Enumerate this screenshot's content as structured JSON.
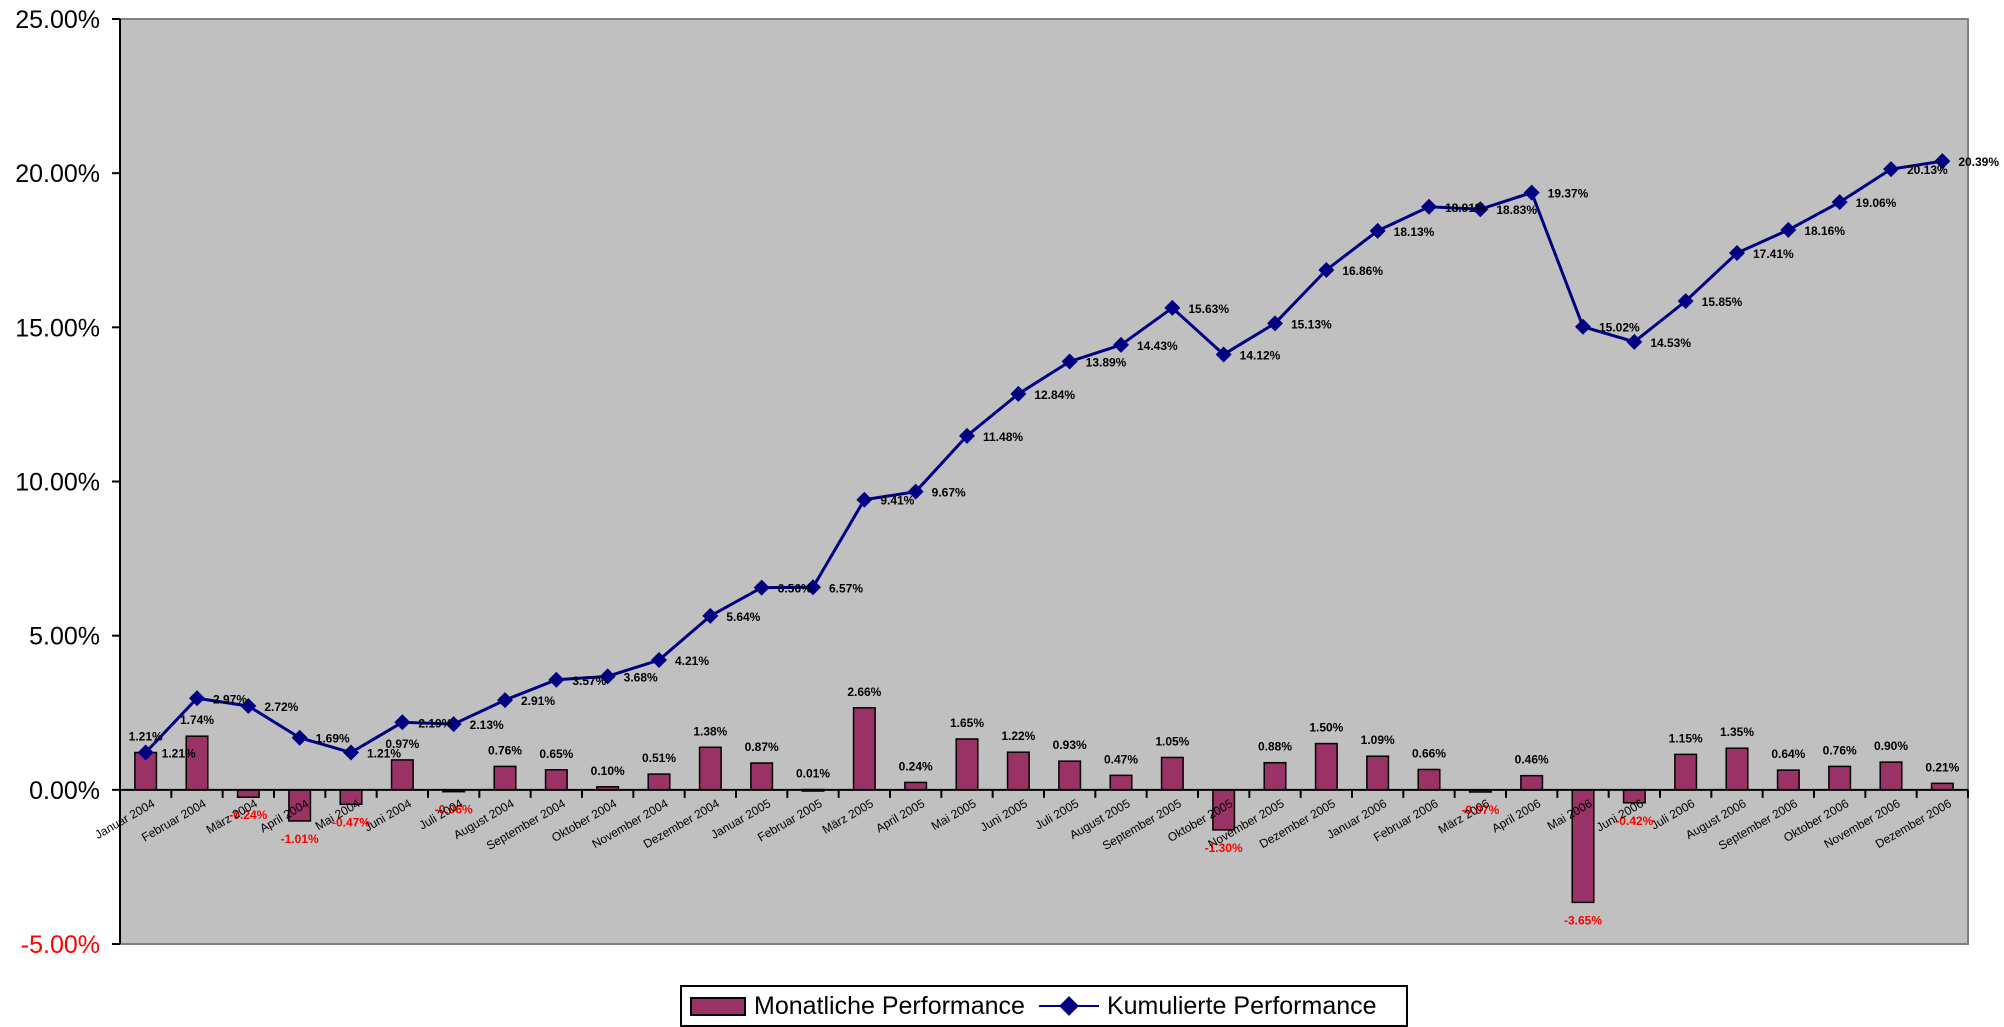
{
  "chart_data": {
    "type": "bar",
    "categories": [
      "Januar 2004",
      "Februar 2004",
      "März 2004",
      "April 2004",
      "Mai 2004",
      "Juni 2004",
      "Juli 2004",
      "August 2004",
      "September 2004",
      "Oktober 2004",
      "November 2004",
      "Dezember 2004",
      "Januar 2005",
      "Februar 2005",
      "März 2005",
      "April 2005",
      "Mai 2005",
      "Juni 2005",
      "Juli 2005",
      "August 2005",
      "September 2005",
      "Oktober 2005",
      "November 2005",
      "Dezember 2005",
      "Januar 2006",
      "Februar 2006",
      "März 2006",
      "April 2006",
      "Mai 2006",
      "Juni 2006",
      "Juli 2006",
      "August 2006",
      "September 2006",
      "Oktober 2006",
      "November 2006",
      "Dezember 2006"
    ],
    "series": [
      {
        "name": "Monatliche Performance",
        "type": "bar",
        "values": [
          1.21,
          1.74,
          -0.24,
          -1.01,
          -0.47,
          0.97,
          -0.06,
          0.76,
          0.65,
          0.1,
          0.51,
          1.38,
          0.87,
          0.01,
          2.66,
          0.24,
          1.65,
          1.22,
          0.93,
          0.47,
          1.05,
          -1.3,
          0.88,
          1.5,
          1.09,
          0.66,
          -0.07,
          0.46,
          -3.65,
          -0.42,
          1.15,
          1.35,
          0.64,
          0.76,
          0.9,
          0.21
        ],
        "labels": [
          "1.21%",
          "1.74%",
          "-0.24%",
          "-1.01%",
          "-0.47%",
          "0.97%",
          "-0.06%",
          "0.76%",
          "0.65%",
          "0.10%",
          "0.51%",
          "1.38%",
          "0.87%",
          "0.01%",
          "2.66%",
          "0.24%",
          "1.65%",
          "1.22%",
          "0.93%",
          "0.47%",
          "1.05%",
          "-1.30%",
          "0.88%",
          "1.50%",
          "1.09%",
          "0.66%",
          "-0.07%",
          "0.46%",
          "-3.65%",
          "-0.42%",
          "1.15%",
          "1.35%",
          "0.64%",
          "0.76%",
          "0.90%",
          "0.21%"
        ],
        "color": "#993366"
      },
      {
        "name": "Kumulierte Performance",
        "type": "line",
        "values": [
          1.21,
          2.97,
          2.72,
          1.69,
          1.21,
          2.19,
          2.13,
          2.91,
          3.57,
          3.68,
          4.21,
          5.64,
          6.56,
          6.57,
          9.41,
          9.67,
          11.48,
          12.84,
          13.89,
          14.43,
          15.63,
          14.12,
          15.13,
          16.86,
          18.13,
          18.91,
          18.83,
          19.37,
          15.02,
          14.53,
          15.85,
          17.41,
          18.16,
          19.06,
          20.13,
          20.39
        ],
        "labels": [
          "1.21%",
          "2.97%",
          "2.72%",
          "1.69%",
          "1.21%",
          "2.19%",
          "2.13%",
          "2.91%",
          "3.57%",
          "3.68%",
          "4.21%",
          "5.64%",
          "6.56%",
          "6.57%",
          "9.41%",
          "9.67%",
          "11.48%",
          "12.84%",
          "13.89%",
          "14.43%",
          "15.63%",
          "14.12%",
          "15.13%",
          "16.86%",
          "18.13%",
          "18.91%",
          "18.83%",
          "19.37%",
          "15.02%",
          "14.53%",
          "15.85%",
          "17.41%",
          "18.16%",
          "19.06%",
          "20.13%",
          "20.39%"
        ],
        "color": "#000080"
      }
    ],
    "yticks": [
      "25.00%",
      "20.00%",
      "15.00%",
      "10.00%",
      "5.00%",
      "0.00%",
      "-5.00%"
    ],
    "ylim": [
      -5,
      25
    ],
    "negative_label_color": "#ff0000",
    "plot_background": "#c0c0c0",
    "grid": false,
    "legend_position": "bottom"
  },
  "legend": {
    "bar_label": "Monatliche Performance",
    "line_label": "Kumulierte Performance"
  }
}
